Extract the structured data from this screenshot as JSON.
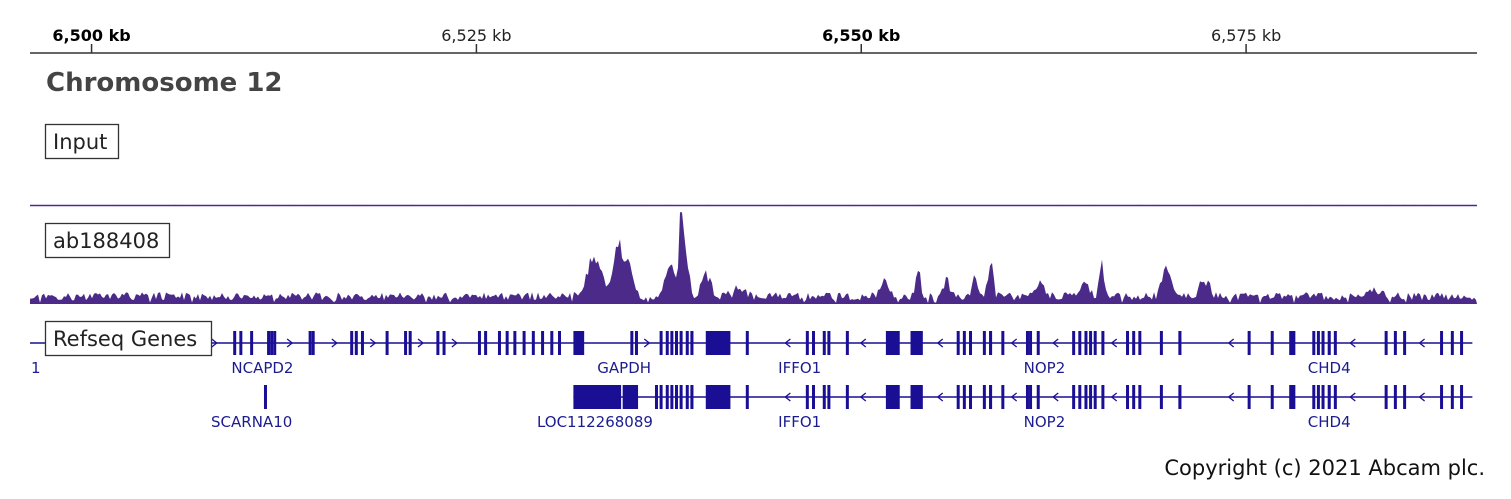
{
  "chart_data": {
    "type": "area",
    "title": "Chromosome 12",
    "axis": {
      "unit": "kb",
      "range_kb": [
        6496,
        6590
      ],
      "ticks": [
        {
          "value": 6500,
          "label": "6,500 kb",
          "emphasis": true
        },
        {
          "value": 6525,
          "label": "6,525 kb",
          "emphasis": false
        },
        {
          "value": 6550,
          "label": "6,550 kb",
          "emphasis": true
        },
        {
          "value": 6575,
          "label": "6,575 kb",
          "emphasis": false
        }
      ]
    },
    "tracks": [
      {
        "name": "Input",
        "type": "signal",
        "baseline": 0.03,
        "peaks": [],
        "color": "#4b2a8a"
      },
      {
        "name": "ab188408",
        "type": "signal",
        "baseline": 0.1,
        "color": "#4b2a8a",
        "peaks": [
          {
            "pos_kb": 6532.7,
            "height": 0.45,
            "width_kb": 0.9
          },
          {
            "pos_kb": 6534.2,
            "height": 0.57,
            "width_kb": 0.6
          },
          {
            "pos_kb": 6534.9,
            "height": 0.38,
            "width_kb": 0.5
          },
          {
            "pos_kb": 6537.6,
            "height": 0.35,
            "width_kb": 0.6
          },
          {
            "pos_kb": 6538.3,
            "height": 1.0,
            "width_kb": 0.25
          },
          {
            "pos_kb": 6538.6,
            "height": 0.55,
            "width_kb": 0.35
          },
          {
            "pos_kb": 6539.9,
            "height": 0.3,
            "width_kb": 0.6
          },
          {
            "pos_kb": 6542.0,
            "height": 0.08,
            "width_kb": 0.8
          },
          {
            "pos_kb": 6551.5,
            "height": 0.16,
            "width_kb": 0.6
          },
          {
            "pos_kb": 6553.7,
            "height": 0.3,
            "width_kb": 0.3
          },
          {
            "pos_kb": 6555.6,
            "height": 0.18,
            "width_kb": 0.5
          },
          {
            "pos_kb": 6557.4,
            "height": 0.2,
            "width_kb": 0.5
          },
          {
            "pos_kb": 6558.4,
            "height": 0.36,
            "width_kb": 0.35
          },
          {
            "pos_kb": 6561.6,
            "height": 0.15,
            "width_kb": 0.6
          },
          {
            "pos_kb": 6564.5,
            "height": 0.17,
            "width_kb": 0.6
          },
          {
            "pos_kb": 6565.6,
            "height": 0.36,
            "width_kb": 0.3
          },
          {
            "pos_kb": 6569.8,
            "height": 0.38,
            "width_kb": 0.5
          },
          {
            "pos_kb": 6572.3,
            "height": 0.22,
            "width_kb": 0.6
          },
          {
            "pos_kb": 6583.3,
            "height": 0.08,
            "width_kb": 0.8
          }
        ]
      }
    ],
    "refseq": {
      "label": "Refseq Genes",
      "row_marker": "1",
      "rows": [
        {
          "line_kb": [
            6496.0,
            6589.7
          ],
          "exons_kb": [
            [
              6509.2,
              6509.3
            ],
            [
              6509.6,
              6509.7
            ],
            [
              6510.3,
              6510.4
            ],
            [
              6511.4,
              6511.5
            ],
            [
              6511.6,
              6511.7
            ],
            [
              6511.8,
              6511.9
            ],
            [
              6514.1,
              6514.2
            ],
            [
              6514.3,
              6514.4
            ],
            [
              6516.8,
              6516.9
            ],
            [
              6517.1,
              6517.2
            ],
            [
              6517.5,
              6517.6
            ],
            [
              6519.1,
              6519.2
            ],
            [
              6520.3,
              6520.4
            ],
            [
              6520.6,
              6520.7
            ],
            [
              6522.4,
              6522.5
            ],
            [
              6522.8,
              6522.9
            ],
            [
              6525.1,
              6525.2
            ],
            [
              6525.5,
              6525.6
            ],
            [
              6526.4,
              6526.5
            ],
            [
              6526.9,
              6527.0
            ],
            [
              6527.4,
              6527.5
            ],
            [
              6528.0,
              6528.1
            ],
            [
              6528.6,
              6528.7
            ],
            [
              6529.2,
              6529.3
            ],
            [
              6529.8,
              6529.9
            ],
            [
              6530.3,
              6530.4
            ],
            [
              6531.3,
              6532.0
            ],
            [
              6535.0,
              6535.1
            ],
            [
              6535.3,
              6535.4
            ],
            [
              6536.9,
              6537.0
            ],
            [
              6537.3,
              6537.4
            ],
            [
              6537.6,
              6537.7
            ],
            [
              6537.9,
              6538.0
            ],
            [
              6538.2,
              6538.3
            ],
            [
              6538.6,
              6538.7
            ],
            [
              6538.9,
              6539.1
            ],
            [
              6539.9,
              6541.5
            ],
            [
              6542.5,
              6542.6
            ],
            [
              6546.4,
              6546.5
            ],
            [
              6546.8,
              6546.9
            ],
            [
              6547.5,
              6547.6
            ],
            [
              6547.8,
              6547.9
            ],
            [
              6549.0,
              6549.1
            ],
            [
              6551.6,
              6552.5
            ],
            [
              6553.2,
              6554.0
            ],
            [
              6556.2,
              6556.3
            ],
            [
              6556.6,
              6556.7
            ],
            [
              6557.0,
              6557.1
            ],
            [
              6557.9,
              6558.0
            ],
            [
              6558.3,
              6558.5
            ],
            [
              6559.1,
              6559.2
            ],
            [
              6560.7,
              6560.8
            ],
            [
              6560.9,
              6561.0
            ],
            [
              6561.4,
              6561.5
            ],
            [
              6563.7,
              6563.8
            ],
            [
              6564.1,
              6564.2
            ],
            [
              6564.5,
              6564.6
            ],
            [
              6564.8,
              6564.9
            ],
            [
              6565.1,
              6565.2
            ],
            [
              6565.6,
              6565.7
            ],
            [
              6567.2,
              6567.3
            ],
            [
              6567.6,
              6567.7
            ],
            [
              6568.0,
              6568.1
            ],
            [
              6569.4,
              6569.5
            ],
            [
              6570.6,
              6570.8
            ],
            [
              6575.1,
              6575.2
            ],
            [
              6576.6,
              6576.7
            ],
            [
              6577.8,
              6578.2
            ],
            [
              6579.3,
              6579.4
            ],
            [
              6579.6,
              6579.7
            ],
            [
              6579.9,
              6580.0
            ],
            [
              6580.3,
              6580.5
            ],
            [
              6580.7,
              6580.8
            ],
            [
              6584.0,
              6584.1
            ],
            [
              6584.6,
              6584.7
            ],
            [
              6585.2,
              6585.3
            ],
            [
              6587.6,
              6587.7
            ],
            [
              6588.3,
              6588.4
            ],
            [
              6588.9,
              6589.0
            ]
          ],
          "arrows": [
            {
              "kb": 6502.3,
              "dir": "right"
            },
            {
              "kb": 6508.0,
              "dir": "right"
            },
            {
              "kb": 6512.9,
              "dir": "right"
            },
            {
              "kb": 6515.8,
              "dir": "right"
            },
            {
              "kb": 6518.3,
              "dir": "right"
            },
            {
              "kb": 6521.4,
              "dir": "right"
            },
            {
              "kb": 6523.6,
              "dir": "right"
            },
            {
              "kb": 6536.1,
              "dir": "right"
            },
            {
              "kb": 6545.2,
              "dir": "left"
            },
            {
              "kb": 6550.1,
              "dir": "left"
            },
            {
              "kb": 6555.1,
              "dir": "left"
            },
            {
              "kb": 6559.9,
              "dir": "left"
            },
            {
              "kb": 6562.6,
              "dir": "left"
            },
            {
              "kb": 6566.4,
              "dir": "left"
            },
            {
              "kb": 6574.0,
              "dir": "left"
            },
            {
              "kb": 6581.9,
              "dir": "left"
            },
            {
              "kb": 6586.4,
              "dir": "left"
            }
          ],
          "genes": [
            {
              "label": "NCAPD2",
              "label_kb": 6511.1
            },
            {
              "label": "GAPDH",
              "label_kb": 6534.6
            },
            {
              "label": "IFFO1",
              "label_kb": 6546.0
            },
            {
              "label": "NOP2",
              "label_kb": 6561.9
            },
            {
              "label": "CHD4",
              "label_kb": 6580.4
            }
          ]
        },
        {
          "line_kb": [
            6531.3,
            6589.7
          ],
          "exons_kb": [
            [
              6511.2,
              6511.3
            ],
            [
              6531.3,
              6534.4
            ],
            [
              6534.5,
              6535.5
            ],
            [
              6536.6,
              6536.7
            ],
            [
              6536.9,
              6537.0
            ],
            [
              6537.3,
              6537.4
            ],
            [
              6537.6,
              6537.7
            ],
            [
              6537.9,
              6538.0
            ],
            [
              6538.2,
              6538.3
            ],
            [
              6538.6,
              6538.7
            ],
            [
              6538.9,
              6539.1
            ],
            [
              6539.9,
              6541.5
            ],
            [
              6542.5,
              6542.6
            ],
            [
              6546.4,
              6546.5
            ],
            [
              6546.8,
              6546.9
            ],
            [
              6547.5,
              6547.6
            ],
            [
              6547.8,
              6547.9
            ],
            [
              6549.0,
              6549.1
            ],
            [
              6551.6,
              6552.5
            ],
            [
              6553.2,
              6554.0
            ],
            [
              6556.2,
              6556.3
            ],
            [
              6556.6,
              6556.7
            ],
            [
              6557.0,
              6557.1
            ],
            [
              6557.9,
              6558.0
            ],
            [
              6558.3,
              6558.5
            ],
            [
              6559.1,
              6559.2
            ],
            [
              6560.7,
              6560.8
            ],
            [
              6560.9,
              6561.0
            ],
            [
              6561.4,
              6561.5
            ],
            [
              6563.7,
              6563.8
            ],
            [
              6564.1,
              6564.2
            ],
            [
              6564.5,
              6564.6
            ],
            [
              6564.8,
              6564.9
            ],
            [
              6565.1,
              6565.2
            ],
            [
              6565.6,
              6565.7
            ],
            [
              6567.2,
              6567.3
            ],
            [
              6567.6,
              6567.7
            ],
            [
              6568.0,
              6568.1
            ],
            [
              6569.4,
              6569.5
            ],
            [
              6570.6,
              6570.8
            ],
            [
              6575.1,
              6575.2
            ],
            [
              6576.6,
              6576.7
            ],
            [
              6577.8,
              6578.2
            ],
            [
              6579.3,
              6579.4
            ],
            [
              6579.6,
              6579.7
            ],
            [
              6579.9,
              6580.0
            ],
            [
              6580.3,
              6580.5
            ],
            [
              6580.7,
              6580.8
            ],
            [
              6584.0,
              6584.1
            ],
            [
              6584.6,
              6584.7
            ],
            [
              6585.2,
              6585.3
            ],
            [
              6587.6,
              6587.7
            ],
            [
              6588.3,
              6588.4
            ],
            [
              6588.9,
              6589.0
            ]
          ],
          "arrows": [
            {
              "kb": 6545.2,
              "dir": "left"
            },
            {
              "kb": 6550.1,
              "dir": "left"
            },
            {
              "kb": 6555.1,
              "dir": "left"
            },
            {
              "kb": 6559.9,
              "dir": "left"
            },
            {
              "kb": 6562.6,
              "dir": "left"
            },
            {
              "kb": 6566.4,
              "dir": "left"
            },
            {
              "kb": 6574.0,
              "dir": "left"
            },
            {
              "kb": 6581.9,
              "dir": "left"
            },
            {
              "kb": 6586.4,
              "dir": "left"
            }
          ],
          "genes": [
            {
              "label": "SCARNA10",
              "label_kb": 6510.4
            },
            {
              "label": "LOC112268089",
              "label_kb": 6532.7
            },
            {
              "label": "IFFO1",
              "label_kb": 6546.0
            },
            {
              "label": "NOP2",
              "label_kb": 6561.9
            },
            {
              "label": "CHD4",
              "label_kb": 6580.4
            }
          ]
        }
      ],
      "colors": {
        "gene": "#1a0f94",
        "gene_label": "#1c1c8f"
      }
    },
    "colors": {
      "signal": "#4b2a8a",
      "axis": "#333333"
    }
  },
  "footer": {
    "copyright": "Copyright (c) 2021 Abcam plc."
  }
}
